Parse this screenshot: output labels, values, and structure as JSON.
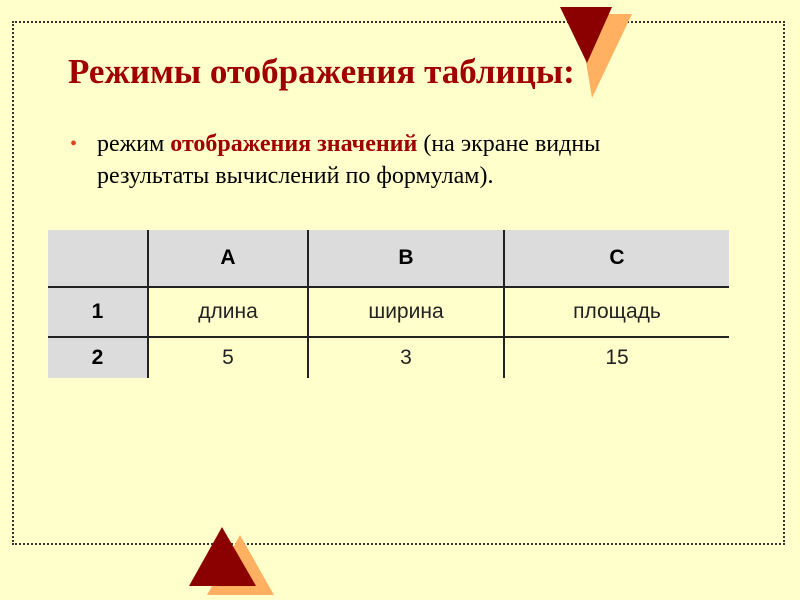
{
  "slide": {
    "title": "Режимы отображения таблицы:",
    "bullet": {
      "prefix": "режим ",
      "highlight": "отображения значений",
      "suffix": " (на экране видны результаты вычислений по формулам)."
    }
  },
  "table": {
    "columns": [
      "",
      "A",
      "B",
      "C"
    ],
    "rows": [
      {
        "header": "1",
        "cells": [
          "длина",
          "ширина",
          "площадь"
        ]
      },
      {
        "header": "2",
        "cells": [
          "5",
          "3",
          "15"
        ]
      }
    ]
  },
  "colors": {
    "background": "#ffffcc",
    "title": "#a00000",
    "triangle_dark": "#8b0000",
    "triangle_light": "#ffb060",
    "header_bg": "#dcdcdc"
  }
}
